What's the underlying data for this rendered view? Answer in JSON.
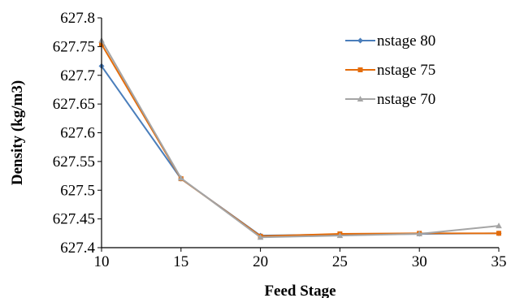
{
  "chart_data": {
    "type": "line",
    "title": "",
    "xlabel": "Feed Stage",
    "ylabel": "Density (kg/m3)",
    "x": [
      10,
      15,
      20,
      25,
      30,
      35
    ],
    "x_ticks": [
      "10",
      "15",
      "20",
      "25",
      "30",
      "35"
    ],
    "xlim": [
      10,
      35
    ],
    "y_ticks": [
      "627.4",
      "627.45",
      "627.5",
      "627.55",
      "627.6",
      "627.65",
      "627.7",
      "627.75",
      "627.8"
    ],
    "ylim": [
      627.4,
      627.8
    ],
    "grid": false,
    "legend_position": "top-right",
    "series": [
      {
        "name": "nstage 80",
        "color": "#4a7ebb",
        "marker": "diamond",
        "values": [
          627.716,
          627.52,
          627.421,
          627.423,
          627.424,
          627.425
        ]
      },
      {
        "name": "nstage 75",
        "color": "#e46c0a",
        "marker": "square",
        "values": [
          627.754,
          627.52,
          627.42,
          627.424,
          627.425,
          627.425
        ]
      },
      {
        "name": "nstage 70",
        "color": "#a5a5a5",
        "marker": "triangle",
        "values": [
          627.761,
          627.521,
          627.418,
          627.421,
          627.424,
          627.438
        ]
      }
    ]
  }
}
